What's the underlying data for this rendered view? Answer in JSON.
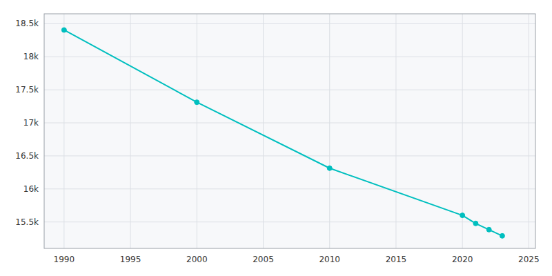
{
  "chart_data": {
    "type": "line",
    "x": [
      1990,
      2000,
      2010,
      2020,
      2021,
      2022,
      2023
    ],
    "values": [
      18405,
      17312,
      16314,
      15600,
      15478,
      15384,
      15290
    ],
    "color": "#00BFBF",
    "marker": "circle",
    "xlim": [
      1988.5,
      2025.5
    ],
    "xticks": [
      1990,
      1995,
      2000,
      2005,
      2010,
      2015,
      2020,
      2025
    ],
    "ylim": [
      15100,
      18650
    ],
    "yticks": [
      {
        "value": 15500,
        "label": "15.5k"
      },
      {
        "value": 16000,
        "label": "16k"
      },
      {
        "value": 16500,
        "label": "16.5k"
      },
      {
        "value": 17000,
        "label": "17k"
      },
      {
        "value": 17500,
        "label": "17.5k"
      },
      {
        "value": 18000,
        "label": "18k"
      },
      {
        "value": 18500,
        "label": "18.5k"
      }
    ],
    "grid": true
  }
}
